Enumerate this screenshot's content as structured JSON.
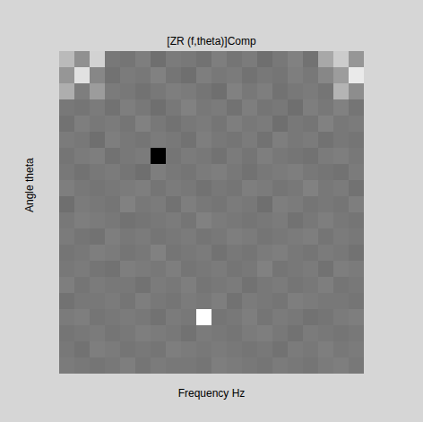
{
  "chart_data": {
    "type": "heatmap",
    "title": "[ZR (f,theta)]Comp",
    "x_label": "Frequency Hz",
    "y_label": "Angle theta",
    "tick_labels": false,
    "cells": [
      [
        72,
        58,
        80,
        50,
        49,
        52,
        47,
        51,
        50,
        48,
        52,
        49,
        51,
        47,
        50,
        53,
        48,
        66,
        78,
        60
      ],
      [
        60,
        85,
        55,
        48,
        51,
        50,
        53,
        49,
        47,
        52,
        50,
        51,
        48,
        50,
        49,
        52,
        50,
        55,
        62,
        88
      ],
      [
        68,
        52,
        62,
        51,
        50,
        48,
        50,
        52,
        51,
        49,
        47,
        53,
        50,
        52,
        48,
        50,
        51,
        49,
        70,
        57
      ],
      [
        50,
        49,
        51,
        48,
        52,
        50,
        47,
        50,
        53,
        50,
        51,
        48,
        52,
        49,
        50,
        47,
        52,
        50,
        53,
        49
      ],
      [
        48,
        52,
        50,
        51,
        49,
        53,
        50,
        48,
        50,
        51,
        49,
        52,
        50,
        51,
        47,
        50,
        49,
        53,
        50,
        51
      ],
      [
        51,
        50,
        47,
        52,
        50,
        49,
        51,
        50,
        48,
        52,
        50,
        49,
        51,
        48,
        52,
        50,
        51,
        48,
        50,
        49
      ],
      [
        49,
        51,
        52,
        48,
        50,
        51,
        10,
        49,
        51,
        50,
        48,
        51,
        49,
        52,
        50,
        49,
        48,
        51,
        52,
        50
      ],
      [
        50,
        48,
        50,
        51,
        49,
        47,
        52,
        50,
        49,
        51,
        52,
        50,
        48,
        50,
        51,
        52,
        50,
        49,
        48,
        51
      ],
      [
        52,
        50,
        49,
        50,
        51,
        52,
        49,
        51,
        50,
        48,
        50,
        49,
        52,
        51,
        49,
        50,
        53,
        50,
        51,
        48
      ],
      [
        47,
        51,
        50,
        49,
        53,
        50,
        51,
        48,
        52,
        50,
        49,
        51,
        50,
        47,
        52,
        51,
        49,
        50,
        49,
        52
      ],
      [
        50,
        52,
        51,
        50,
        48,
        49,
        50,
        51,
        49,
        53,
        51,
        50,
        49,
        50,
        51,
        48,
        50,
        52,
        50,
        49
      ],
      [
        51,
        49,
        48,
        52,
        50,
        51,
        49,
        50,
        51,
        49,
        50,
        52,
        51,
        49,
        50,
        51,
        52,
        49,
        51,
        50
      ],
      [
        49,
        50,
        52,
        51,
        49,
        50,
        53,
        49,
        50,
        51,
        48,
        50,
        49,
        51,
        52,
        50,
        49,
        51,
        50,
        48
      ],
      [
        50,
        51,
        49,
        48,
        52,
        51,
        50,
        52,
        49,
        50,
        51,
        49,
        50,
        53,
        49,
        50,
        51,
        48,
        52,
        51
      ],
      [
        52,
        49,
        51,
        50,
        50,
        48,
        51,
        50,
        52,
        49,
        50,
        51,
        48,
        50,
        51,
        49,
        50,
        52,
        49,
        50
      ],
      [
        48,
        50,
        50,
        51,
        49,
        52,
        50,
        49,
        51,
        50,
        52,
        48,
        51,
        50,
        49,
        52,
        51,
        50,
        50,
        49
      ],
      [
        51,
        52,
        49,
        50,
        51,
        50,
        48,
        51,
        50,
        95,
        49,
        50,
        52,
        49,
        51,
        50,
        48,
        49,
        51,
        52
      ],
      [
        49,
        50,
        51,
        49,
        50,
        52,
        51,
        50,
        48,
        51,
        50,
        49,
        51,
        52,
        50,
        48,
        51,
        50,
        49,
        50
      ],
      [
        50,
        48,
        52,
        51,
        49,
        50,
        49,
        52,
        51,
        50,
        51,
        50,
        49,
        50,
        48,
        51,
        50,
        52,
        50,
        51
      ],
      [
        51,
        50,
        49,
        50,
        52,
        49,
        51,
        50,
        50,
        49,
        52,
        51,
        50,
        49,
        51,
        50,
        49,
        51,
        52,
        50
      ]
    ]
  }
}
